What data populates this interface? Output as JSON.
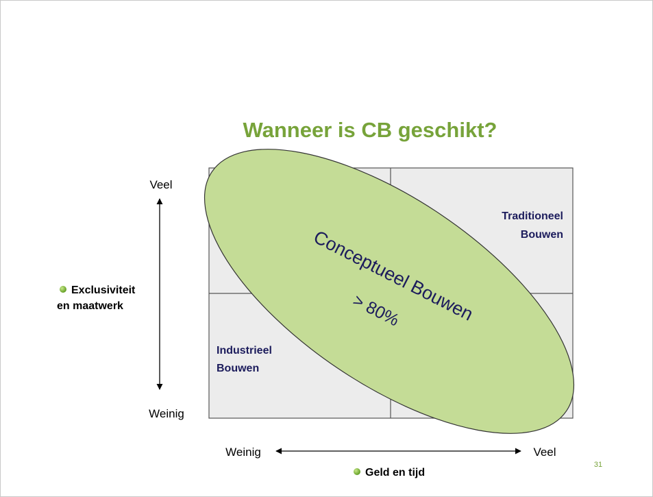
{
  "title": "Wanneer is CB geschikt?",
  "y_axis": {
    "high": "Veel",
    "low": "Weinig",
    "label": [
      "Exclusiviteit",
      "en maatwerk"
    ]
  },
  "x_axis": {
    "low": "Weinig",
    "high": "Veel",
    "label": "Geld en tijd"
  },
  "quadrants": {
    "top_right": [
      "Traditioneel",
      "Bouwen"
    ],
    "bottom_left": [
      "Industrieel",
      "Bouwen"
    ]
  },
  "ellipse": {
    "lines": [
      "Conceptueel Bouwen",
      "> 80%"
    ]
  },
  "page_number": "31"
}
